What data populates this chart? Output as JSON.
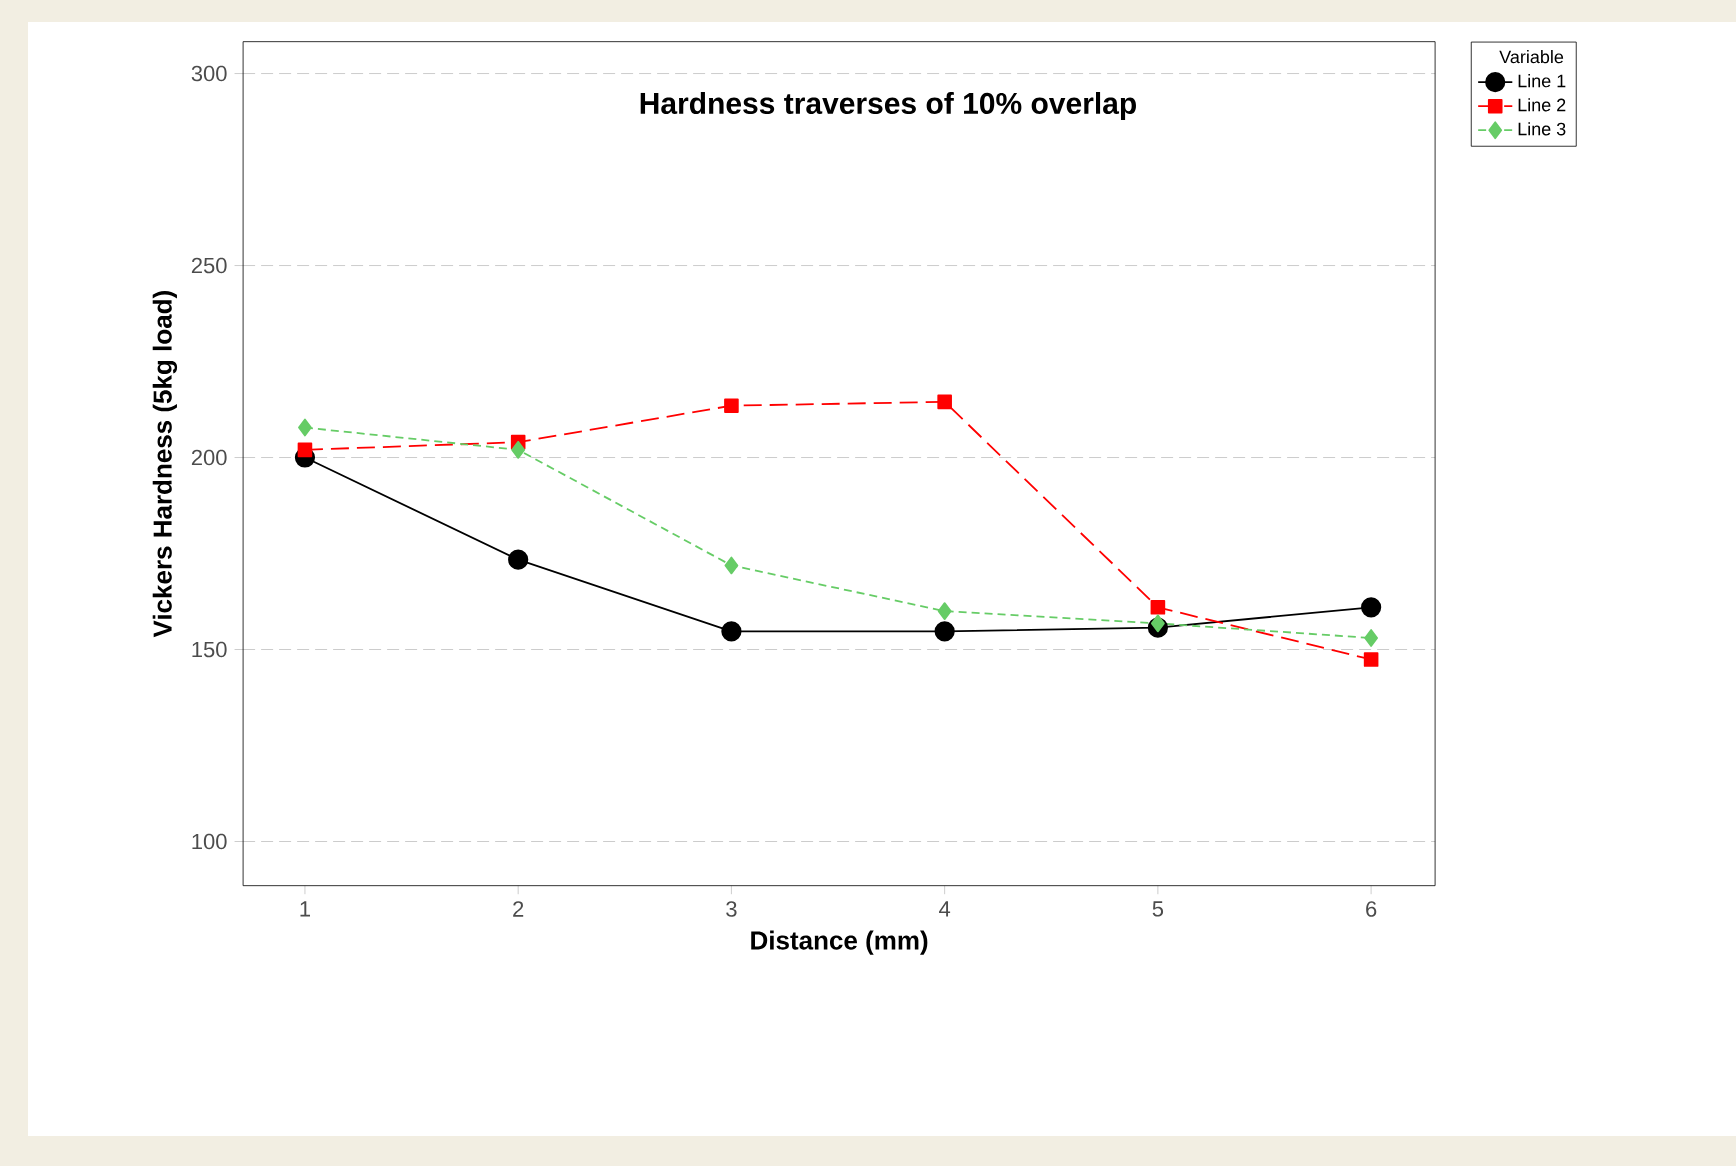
{
  "chart_data": {
    "type": "line",
    "title": "Hardness traverses of 10% overlap",
    "xlabel": "Distance (mm)",
    "ylabel": "Vickers Hardness (5kg load)",
    "x": [
      1,
      2,
      3,
      4,
      5,
      6
    ],
    "series": [
      {
        "name": "Line 1",
        "color": "#000000",
        "marker": "circle",
        "line_style": "solid",
        "values": [
          200,
          173.4,
          154.7,
          154.7,
          155.7,
          161
        ]
      },
      {
        "name": "Line 2",
        "color": "#ff0000",
        "marker": "square",
        "line_style": "dashed",
        "values": [
          202,
          204,
          213.5,
          214.5,
          161,
          147.4
        ]
      },
      {
        "name": "Line 3",
        "color": "#66cc66",
        "marker": "diamond",
        "line_style": "dotted",
        "values": [
          207.8,
          202,
          171.9,
          160,
          156.8,
          153
        ]
      }
    ],
    "legend_title": "Variable",
    "legend": "top right",
    "xlim": [
      0.71,
      6.3
    ],
    "xticks": [
      1,
      2,
      3,
      4,
      5,
      6
    ],
    "ylim": [
      88.5,
      308.3
    ],
    "yticks": [
      100,
      150,
      200,
      250,
      300
    ],
    "grid": "y"
  }
}
